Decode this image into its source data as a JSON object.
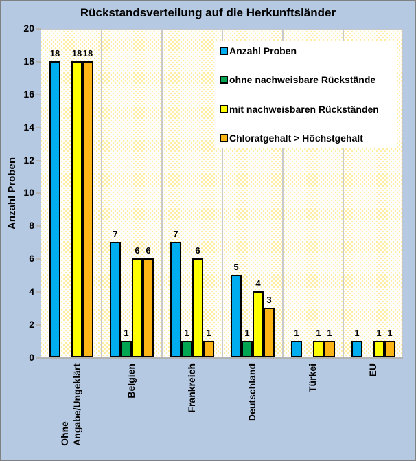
{
  "title": "Rückstandsverteilung auf die Herkunftsländer",
  "y_axis": {
    "label": "Anzahl Proben",
    "ticks": [
      0,
      2,
      4,
      6,
      8,
      10,
      12,
      14,
      16,
      18,
      20
    ]
  },
  "colors": {
    "frame_background": "#b6c9e2",
    "plot_background": "#ffffff",
    "plot_dot_pattern": "#ffeda1",
    "gridline": "#c9c9c9",
    "bar_border": "#000000"
  },
  "chart_data": {
    "type": "bar",
    "title": "Rückstandsverteilung auf die Herkunftsländer",
    "xlabel": "",
    "ylabel": "Anzahl Proben",
    "ylim": [
      0,
      20
    ],
    "grid": "vertical-category-separators",
    "legend_position": "upper-right-inside",
    "categories": [
      "Ohne\nAngabe/Ungeklärt",
      "Belgien",
      "Frankreich",
      "Deutschland",
      "Türkei",
      "EU"
    ],
    "series": [
      {
        "name": "Anzahl Proben",
        "color": "#00aeef",
        "values": [
          18,
          7,
          7,
          5,
          1,
          1
        ]
      },
      {
        "name": "ohne nachweisbare Rückstände",
        "color": "#00a651",
        "values": [
          0,
          1,
          1,
          1,
          0,
          0
        ]
      },
      {
        "name": "mit nachweisbaren Rückständen",
        "color": "#ffff00",
        "values": [
          18,
          6,
          6,
          4,
          1,
          1
        ]
      },
      {
        "name": "Chloratgehalt > Höchstgehalt",
        "color": "#fdb515",
        "values": [
          18,
          6,
          1,
          3,
          1,
          1
        ]
      }
    ]
  }
}
